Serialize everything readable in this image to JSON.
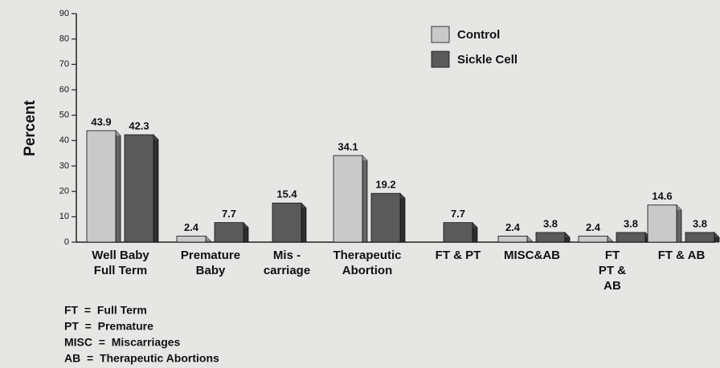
{
  "chart_data": {
    "type": "bar",
    "y_label": "Percent",
    "categories": [
      [
        "Well Baby",
        "Full Term"
      ],
      [
        "Premature",
        "Baby"
      ],
      [
        "Mis -",
        "carriage"
      ],
      [
        "Therapeutic",
        "Abortion"
      ],
      [
        "FT & PT"
      ],
      [
        "MISC&AB"
      ],
      [
        "FT",
        "PT &",
        "AB"
      ],
      [
        "FT & AB"
      ]
    ],
    "series": [
      {
        "name": "Control",
        "color": "#c9c9c9",
        "values": [
          43.9,
          2.4,
          null,
          34.1,
          null,
          2.4,
          2.4,
          14.6
        ]
      },
      {
        "name": "Sickle Cell",
        "color": "#5a5a5a",
        "values": [
          42.3,
          7.7,
          15.4,
          19.2,
          7.7,
          3.8,
          3.8,
          3.8
        ]
      }
    ],
    "ylim": [
      0,
      90
    ],
    "yticks": [
      0,
      10,
      20,
      30,
      40,
      50,
      60,
      70,
      80,
      90
    ],
    "legend": "top-right",
    "notes": [
      "FT  =  Full Term",
      "PT  =  Premature",
      "MISC  =  Miscarriages",
      "AB  =  Therapeutic Abortions"
    ]
  }
}
